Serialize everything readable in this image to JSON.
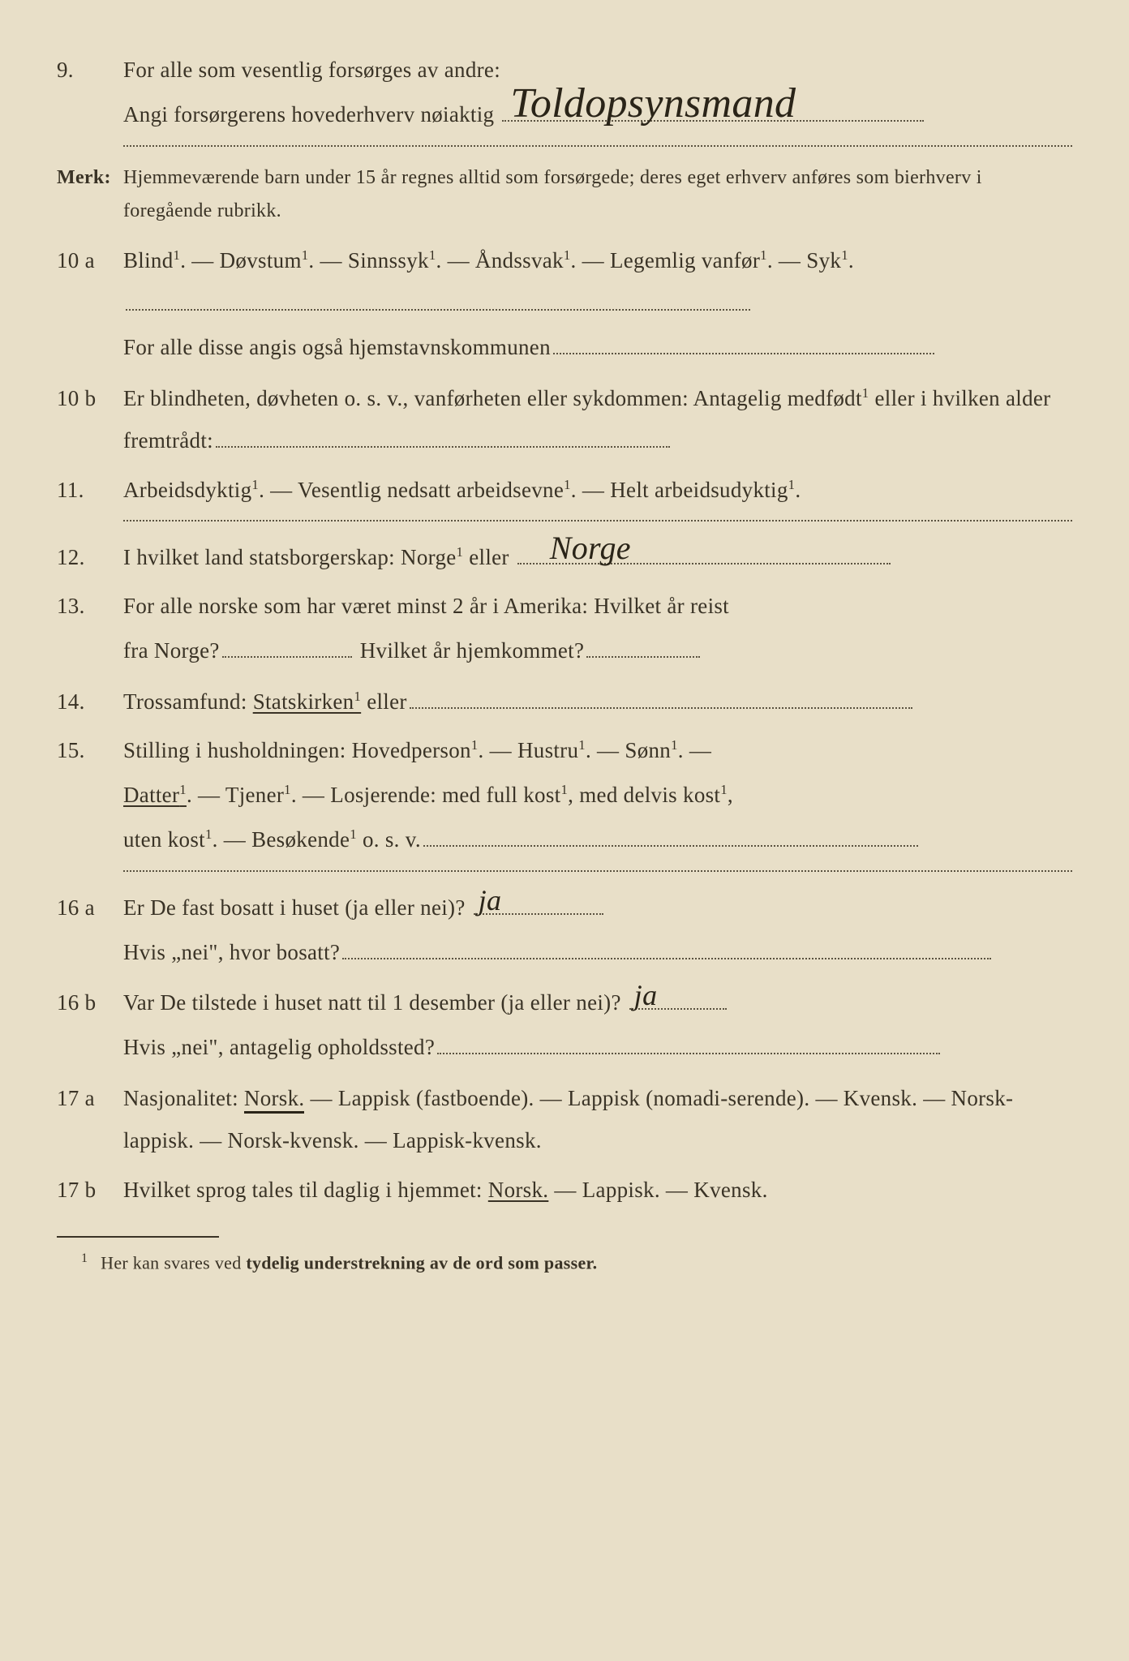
{
  "q9": {
    "num": "9.",
    "line1": "For alle som vesentlig forsørges av andre:",
    "line2_a": "Angi forsørgerens hovederhverv nøiaktig",
    "handwritten": "Toldopsynsmand"
  },
  "merk": {
    "label": "Merk:",
    "text": "Hjemmeværende barn under 15 år regnes alltid som forsørgede; deres eget erhverv anføres som bierhverv i foregående rubrikk."
  },
  "q10a": {
    "num": "10 a",
    "opts": "Blind¹.   —   Døvstum¹.   —   Sinnssyk¹.   —   Åndssvak¹.   —   Legemlig vanfør¹.  —  Syk¹.",
    "line2": "For  alle  disse  angis  også  hjemstavnskommunen"
  },
  "q10b": {
    "num": "10 b",
    "text": "Er blindheten, døvheten o. s. v., vanførheten eller sykdommen: Antagelig medfødt¹  eller  i  hvilken  alder  fremtrådt:"
  },
  "q11": {
    "num": "11.",
    "text": "Arbeidsdyktig¹. — Vesentlig nedsatt arbeidsevne¹. — Helt arbeidsudyktig¹."
  },
  "q12": {
    "num": "12.",
    "text_a": "I hvilket land statsborgerskap:  Norge¹ eller",
    "handwritten": "Norge"
  },
  "q13": {
    "num": "13.",
    "line1": "For  alle  norske  som  har  været  minst  2  år  i  Amerika:  Hvilket  år  reist",
    "line2_a": "fra Norge?",
    "line2_b": "Hvilket år hjemkommet?"
  },
  "q14": {
    "num": "14.",
    "text_a": "Trossamfund:   ",
    "underlined": "Statskirken¹",
    "text_b": " eller"
  },
  "q15": {
    "num": "15.",
    "text_a": "Stilling  i  husholdningen:    Hovedperson¹.   —   Hustru¹.   —   Sønn¹.  —",
    "datter": "Datter¹",
    "text_b": ".  —  Tjener¹.  —  Losjerende:   med  full  kost¹,  med  delvis  kost¹,",
    "text_c": "uten kost¹.  —  Besøkende¹  o. s. v."
  },
  "q16a": {
    "num": "16 a",
    "text": "Er De fast bosatt i huset (ja eller nei)?",
    "handwritten": "ja",
    "line2": "Hvis „nei\", hvor bosatt?"
  },
  "q16b": {
    "num": "16 b",
    "text": "Var De tilstede i huset natt til 1 desember (ja eller nei)?",
    "handwritten": "ja",
    "line2": "Hvis „nei\", antagelig opholdssted?"
  },
  "q17a": {
    "num": "17 a",
    "text_a": "Nasjonalitet:   ",
    "norsk": "Norsk.",
    "text_b": "   —   Lappisk  (fastboende).   —   Lappisk  (nomadi-serende).  —  Kvensk.  —  Norsk-lappisk.  —  Norsk-kvensk.  —  Lappisk-kvensk."
  },
  "q17b": {
    "num": "17 b",
    "text_a": "Hvilket sprog tales til daglig i hjemmet: ",
    "norsk": "Norsk.",
    "text_b": " — Lappisk. — Kvensk."
  },
  "footnote": {
    "num": "1",
    "text_a": "Her kan svares ved ",
    "bold": "tydelig understrekning av de ord som passer."
  }
}
